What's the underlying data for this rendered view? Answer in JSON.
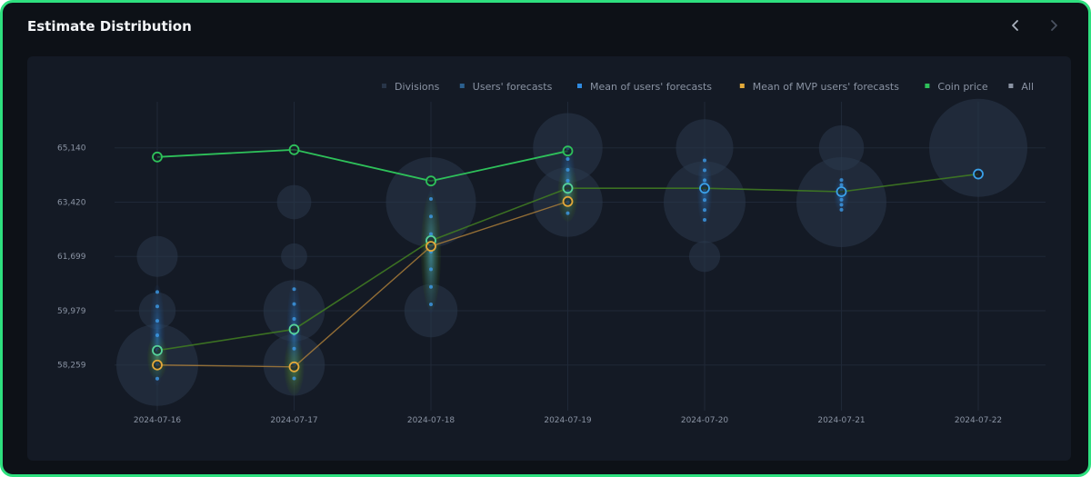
{
  "header": {
    "title": "Estimate Distribution",
    "prev_icon": "chevron-left-icon",
    "next_icon": "chevron-right-icon"
  },
  "chart_data": {
    "type": "scatter",
    "categories": [
      "2024-07-16",
      "2024-07-17",
      "2024-07-18",
      "2024-07-19",
      "2024-07-20",
      "2024-07-21",
      "2024-07-22"
    ],
    "yticks": [
      58259,
      59979,
      61699,
      63420,
      65140
    ],
    "ytick_labels": [
      "58,259",
      "59,979",
      "61,699",
      "63,420",
      "65,140"
    ],
    "ylim": [
      57100,
      66600
    ],
    "grid": true,
    "legend_position": "top-right",
    "legend": [
      {
        "name": "Divisions",
        "color": "#283549"
      },
      {
        "name": "Users' forecasts",
        "color": "#2b5f8e"
      },
      {
        "name": "Mean of users' forecasts",
        "color": "#2f8ae0"
      },
      {
        "name": "Mean of MVP users' forecasts",
        "color": "#e2a93a"
      },
      {
        "name": "Coin price",
        "color": "#2ec15a"
      },
      {
        "name": "All",
        "color": "#8a93a3"
      }
    ],
    "series": [
      {
        "name": "Coin price",
        "color": "#2ec15a",
        "values": [
          64850,
          65080,
          64090,
          65040,
          null,
          null,
          null
        ]
      },
      {
        "name": "Mean of users' forecasts",
        "color": "#3aa0e8",
        "values": [
          58720,
          59390,
          62200,
          63860,
          63860,
          63750,
          64310
        ]
      },
      {
        "name": "Mean of MVP users' forecasts",
        "color": "#e2a93a",
        "values": [
          58259,
          58200,
          62020,
          63440,
          null,
          null,
          null
        ]
      }
    ],
    "divisions": [
      {
        "x": "2024-07-16",
        "y": 58259,
        "size": 1.0
      },
      {
        "x": "2024-07-16",
        "y": 59979,
        "size": 0.45
      },
      {
        "x": "2024-07-16",
        "y": 61699,
        "size": 0.5
      },
      {
        "x": "2024-07-17",
        "y": 58259,
        "size": 0.75
      },
      {
        "x": "2024-07-17",
        "y": 59979,
        "size": 0.75
      },
      {
        "x": "2024-07-17",
        "y": 61699,
        "size": 0.32
      },
      {
        "x": "2024-07-17",
        "y": 63420,
        "size": 0.42
      },
      {
        "x": "2024-07-18",
        "y": 59979,
        "size": 0.65
      },
      {
        "x": "2024-07-18",
        "y": 63420,
        "size": 1.1
      },
      {
        "x": "2024-07-19",
        "y": 63420,
        "size": 0.85
      },
      {
        "x": "2024-07-19",
        "y": 65140,
        "size": 0.85
      },
      {
        "x": "2024-07-20",
        "y": 61699,
        "size": 0.38
      },
      {
        "x": "2024-07-20",
        "y": 63420,
        "size": 1.0
      },
      {
        "x": "2024-07-20",
        "y": 65140,
        "size": 0.7
      },
      {
        "x": "2024-07-21",
        "y": 63420,
        "size": 1.1
      },
      {
        "x": "2024-07-21",
        "y": 65140,
        "size": 0.55
      },
      {
        "x": "2024-07-22",
        "y": 65140,
        "size": 1.2
      }
    ],
    "forecast_spreads": [
      {
        "x": "2024-07-16",
        "blue_y": [
          57600,
          60800
        ],
        "green_y": [
          57800,
          59200
        ]
      },
      {
        "x": "2024-07-17",
        "blue_y": [
          57600,
          60900
        ],
        "green_y": [
          57300,
          59100
        ]
      },
      {
        "x": "2024-07-18",
        "blue_y": [
          59900,
          63800
        ],
        "green_y": [
          60000,
          63700
        ]
      },
      {
        "x": "2024-07-19",
        "blue_y": [
          62900,
          65300
        ],
        "green_y": [
          62800,
          64600
        ]
      },
      {
        "x": "2024-07-20",
        "blue_y": [
          62700,
          64900
        ],
        "green_y": null
      },
      {
        "x": "2024-07-21",
        "blue_y": [
          63100,
          64200
        ],
        "green_y": null
      },
      {
        "x": "2024-07-22",
        "blue_y": null,
        "green_y": null
      }
    ]
  }
}
